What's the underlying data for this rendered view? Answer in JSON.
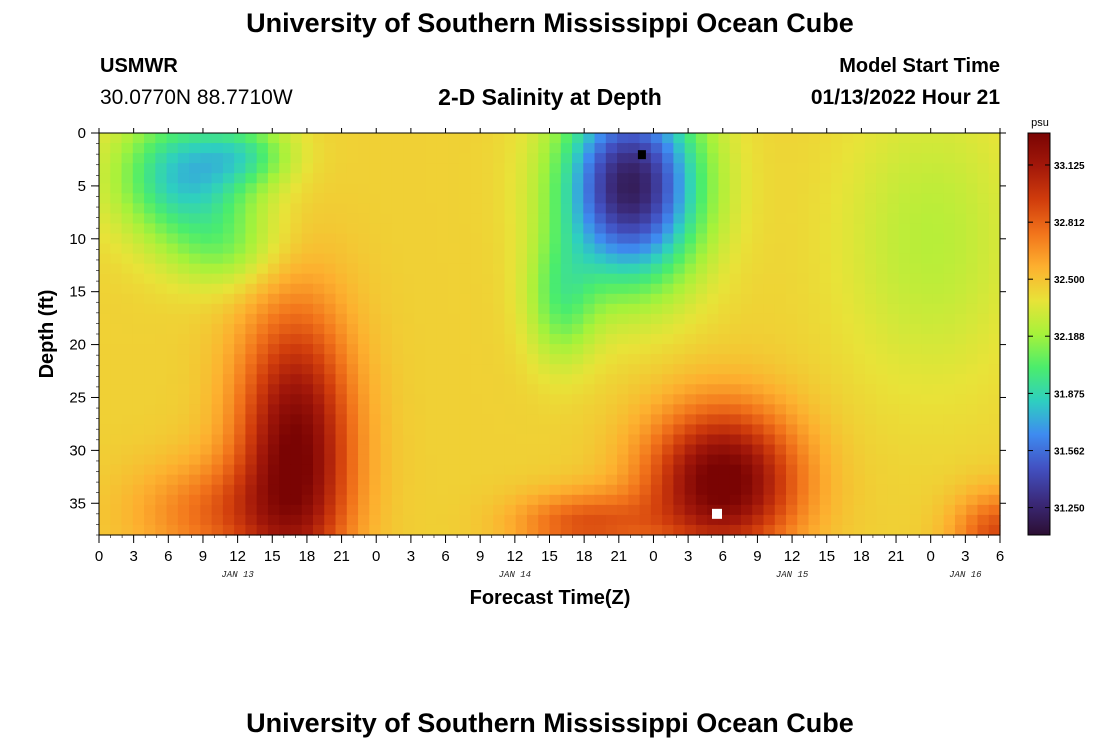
{
  "header": {
    "title": "University of Southern Mississippi Ocean Cube",
    "station": "USMWR",
    "coords": "30.0770N  88.7710W",
    "subtitle": "2-D Salinity at Depth",
    "model_start_label": "Model Start Time",
    "model_start_value": "01/13/2022 Hour 21"
  },
  "footer": {
    "title": "University of Southern Mississippi Ocean Cube"
  },
  "colors": {
    "scale": [
      "#2c0e32",
      "#3b2a7a",
      "#4251c2",
      "#3e8bf0",
      "#2ecfc0",
      "#4bed6c",
      "#a6f23a",
      "#e8e338",
      "#fdb02f",
      "#f2741b",
      "#d13d0c",
      "#a3180a",
      "#7a0403"
    ],
    "min_marker": "#000000",
    "max_marker": "#ffffff"
  },
  "chart_data": {
    "type": "heatmap",
    "title": "2-D Salinity at Depth",
    "xlabel": "Forecast Time(Z)",
    "ylabel": "Depth (ft)",
    "x_tick_labels": [
      "0",
      "3",
      "6",
      "9",
      "12",
      "15",
      "18",
      "21",
      "0",
      "3",
      "6",
      "9",
      "12",
      "15",
      "18",
      "21",
      "0",
      "3",
      "6",
      "9",
      "12",
      "15",
      "18",
      "21",
      "0",
      "3",
      "6"
    ],
    "x_hours_range": [
      0,
      78
    ],
    "day_labels": [
      {
        "text": "JAN 13",
        "hour": 12
      },
      {
        "text": "JAN 14",
        "hour": 36
      },
      {
        "text": "JAN 15",
        "hour": 60
      },
      {
        "text": "JAN 16",
        "hour": 75
      }
    ],
    "y_ticks": [
      0,
      5,
      10,
      15,
      20,
      25,
      30,
      35
    ],
    "ylim": [
      0,
      38
    ],
    "colorbar": {
      "unit": "psu",
      "min": 31.1,
      "max": 33.3,
      "labels": [
        "33.125",
        "32.812",
        "32.500",
        "32.188",
        "31.875",
        "31.562",
        "31.250"
      ]
    },
    "field": {
      "background": 32.45,
      "features": [
        {
          "hour": 7.5,
          "depth": 4,
          "hour_width": 6,
          "depth_width": 6,
          "amplitude": -0.65
        },
        {
          "hour": 13,
          "depth": 2,
          "hour_width": 4,
          "depth_width": 3,
          "amplitude": -0.3
        },
        {
          "hour": 11,
          "depth": 11,
          "hour_width": 5,
          "depth_width": 4,
          "amplitude": -0.25
        },
        {
          "hour": 17,
          "depth": 30,
          "hour_width": 5,
          "depth_width": 13,
          "amplitude": 0.85
        },
        {
          "hour": 10,
          "depth": 36,
          "hour_width": 7,
          "depth_width": 5,
          "amplitude": 0.3
        },
        {
          "hour": 46,
          "depth": 5,
          "hour_width": 6,
          "depth_width": 9,
          "amplitude": -1.25
        },
        {
          "hour": 40,
          "depth": 16,
          "hour_width": 3,
          "depth_width": 6,
          "amplitude": -0.35
        },
        {
          "hour": 54,
          "depth": 33,
          "hour_width": 6.5,
          "depth_width": 7,
          "amplitude": 0.9
        },
        {
          "hour": 42,
          "depth": 37,
          "hour_width": 6,
          "depth_width": 3,
          "amplitude": 0.4
        },
        {
          "hour": 78,
          "depth": 38,
          "hour_width": 4,
          "depth_width": 4,
          "amplitude": 0.45
        },
        {
          "hour": 72,
          "depth": 10,
          "hour_width": 8,
          "depth_width": 14,
          "amplitude": -0.2
        }
      ]
    },
    "min_marker": {
      "hour": 47,
      "depth": 2
    },
    "max_marker": {
      "hour": 53.5,
      "depth": 36
    }
  }
}
